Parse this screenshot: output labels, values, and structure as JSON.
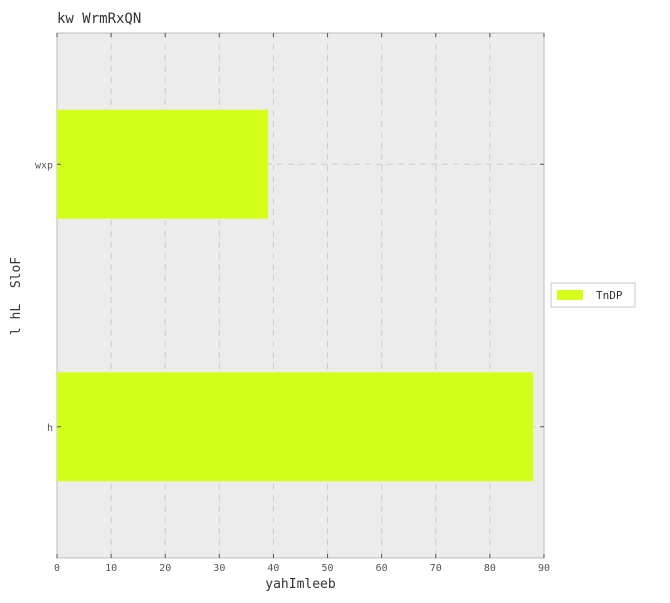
{
  "chart_data": {
    "type": "bar",
    "orientation": "horizontal",
    "title": "kw WrmRxQN",
    "xlabel": "yahImleeb",
    "ylabel": "l hL  SloF",
    "categories": [
      "h",
      "wxp"
    ],
    "series": [
      {
        "name": "TnDP",
        "values": [
          88,
          39
        ],
        "color": "#d4ff1a"
      }
    ],
    "xlim": [
      0,
      90
    ],
    "xticks": [
      0,
      10,
      20,
      30,
      40,
      50,
      60,
      70,
      80,
      90
    ],
    "grid": true,
    "legend_position": "right",
    "plot_background": "#ececec",
    "grid_color": "#cccccc",
    "spine_color": "#bcbcbc"
  }
}
